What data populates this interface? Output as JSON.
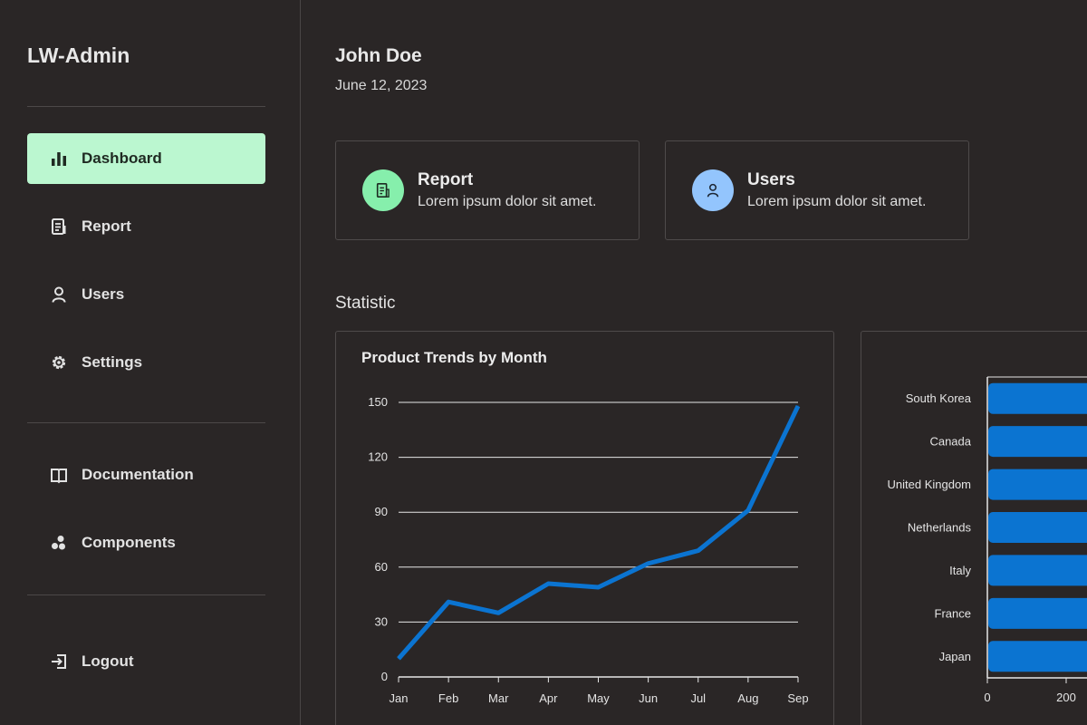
{
  "app": {
    "title": "LW-Admin"
  },
  "sidebar": {
    "items": [
      {
        "label": "Dashboard",
        "icon": "bar-chart-icon",
        "active": true
      },
      {
        "label": "Report",
        "icon": "document-icon"
      },
      {
        "label": "Users",
        "icon": "user-icon"
      },
      {
        "label": "Settings",
        "icon": "gear-icon"
      }
    ],
    "secondary": [
      {
        "label": "Documentation",
        "icon": "book-icon"
      },
      {
        "label": "Components",
        "icon": "components-icon"
      }
    ],
    "logout": {
      "label": "Logout",
      "icon": "logout-icon"
    }
  },
  "header": {
    "user_name": "John Doe",
    "date": "June 12, 2023"
  },
  "cards": [
    {
      "title": "Report",
      "description": "Lorem ipsum dolor sit amet.",
      "icon": "document-icon",
      "color": "#86efac"
    },
    {
      "title": "Users",
      "description": "Lorem ipsum dolor sit amet.",
      "icon": "user-icon",
      "color": "#93c5fd"
    }
  ],
  "statistic": {
    "title": "Statistic"
  },
  "colors": {
    "accent": "#bbf7d0",
    "series": "#0b74d1",
    "background": "#2a2626"
  },
  "chart_data": [
    {
      "type": "line",
      "title": "Product Trends by Month",
      "categories": [
        "Jan",
        "Feb",
        "Mar",
        "Apr",
        "May",
        "Jun",
        "Jul",
        "Aug",
        "Sep"
      ],
      "values": [
        10,
        41,
        35,
        51,
        49,
        62,
        69,
        91,
        148
      ],
      "ylim": [
        0,
        150
      ],
      "yticks": [
        0,
        30,
        60,
        90,
        120,
        150
      ],
      "grid": true
    },
    {
      "type": "bar",
      "orientation": "horizontal",
      "categories": [
        "South Korea",
        "Canada",
        "United Kingdom",
        "Netherlands",
        "Italy",
        "France",
        "Japan"
      ],
      "xticks": [
        0,
        200
      ]
    }
  ]
}
